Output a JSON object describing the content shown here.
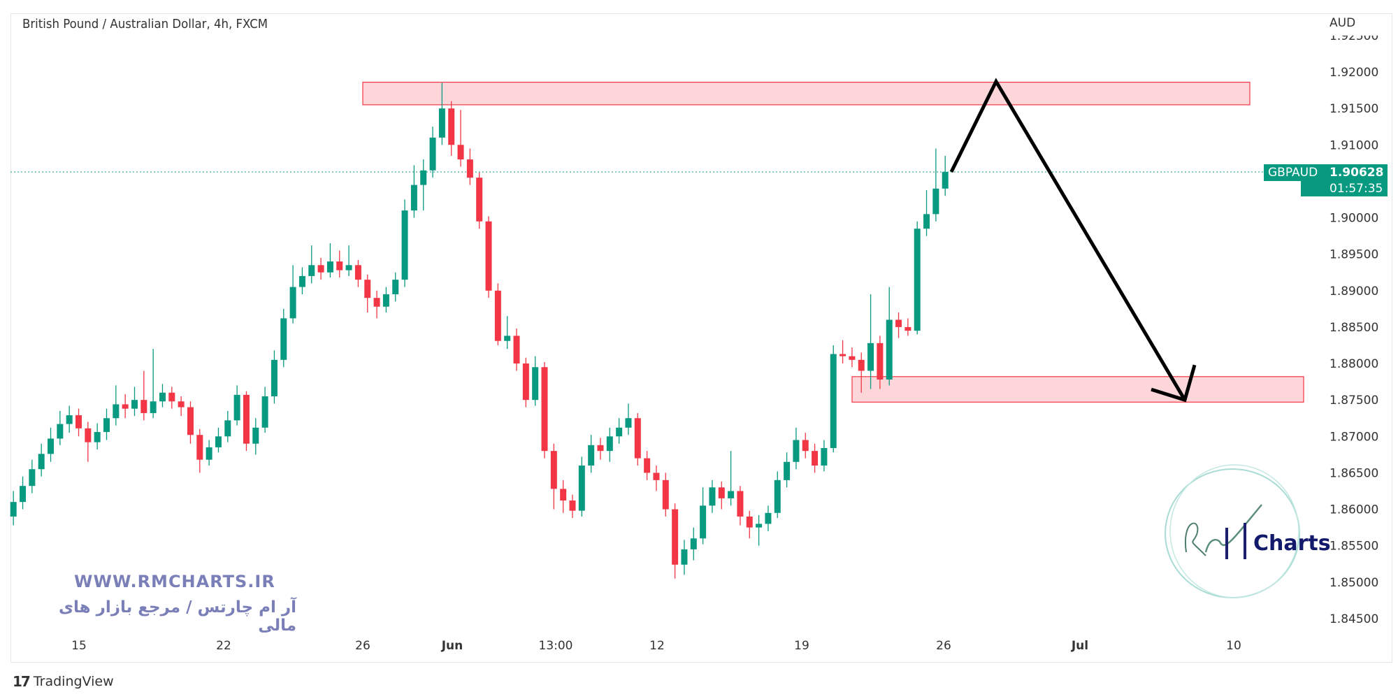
{
  "header": {
    "title": "British Pound / Australian Dollar, 4h, FXCM",
    "currency": "AUD"
  },
  "price_label": {
    "symbol": "GBPAUD",
    "price": "1.90628",
    "countdown": "01:57:35"
  },
  "watermark": {
    "url": "WWW.RMCHARTS.IR",
    "tagline": "آر ام چارتس / مرجع بازار های مالی",
    "logo_text": "RMCharts"
  },
  "footer": {
    "brand": "TradingView"
  },
  "colors": {
    "up": "#089981",
    "down": "#f23645",
    "zone_fill": "#fdd6da",
    "zone_border": "#f23645",
    "arrow": "#000000",
    "price_line": "#089981"
  },
  "chart_data": {
    "type": "candlestick",
    "title": "British Pound / Australian Dollar, 4h, FXCM",
    "ylabel": "AUD",
    "ylim": [
      1.8425,
      1.9235
    ],
    "y_ticks": [
      "1.92500",
      "1.92000",
      "1.91500",
      "1.91000",
      "1.90000",
      "1.89500",
      "1.89000",
      "1.88500",
      "1.88000",
      "1.87500",
      "1.87000",
      "1.86500",
      "1.86000",
      "1.85500",
      "1.85000",
      "1.84500"
    ],
    "x_ticks": [
      "15",
      "22",
      "26",
      "Jun",
      "13:00",
      "12",
      "19",
      "26",
      "Jul",
      "10"
    ],
    "last_price": 1.90628,
    "zones": [
      {
        "type": "resistance",
        "top": 1.9186,
        "bottom": 1.9155
      },
      {
        "type": "support",
        "top": 1.8782,
        "bottom": 1.8747
      }
    ],
    "projection_path": [
      1.9063,
      1.9187,
      1.875
    ],
    "candles": [
      [
        1.859,
        1.8625,
        1.8578,
        1.861
      ],
      [
        1.861,
        1.8645,
        1.86,
        1.8632
      ],
      [
        1.8632,
        1.8668,
        1.8622,
        1.8655
      ],
      [
        1.8655,
        1.869,
        1.8645,
        1.8676
      ],
      [
        1.8676,
        1.8712,
        1.8665,
        1.8697
      ],
      [
        1.8697,
        1.8735,
        1.8688,
        1.8717
      ],
      [
        1.8717,
        1.8742,
        1.8705,
        1.8729
      ],
      [
        1.8729,
        1.8738,
        1.87,
        1.8711
      ],
      [
        1.8711,
        1.872,
        1.8665,
        1.8692
      ],
      [
        1.8692,
        1.8718,
        1.8682,
        1.8706
      ],
      [
        1.8706,
        1.8738,
        1.8695,
        1.8725
      ],
      [
        1.8725,
        1.877,
        1.8715,
        1.8744
      ],
      [
        1.8744,
        1.8758,
        1.8725,
        1.8738
      ],
      [
        1.8738,
        1.8768,
        1.8728,
        1.875
      ],
      [
        1.875,
        1.879,
        1.8722,
        1.8732
      ],
      [
        1.8732,
        1.882,
        1.8725,
        1.8748
      ],
      [
        1.8748,
        1.8772,
        1.874,
        1.876
      ],
      [
        1.876,
        1.8768,
        1.8738,
        1.8748
      ],
      [
        1.8748,
        1.8755,
        1.8728,
        1.874
      ],
      [
        1.874,
        1.8748,
        1.869,
        1.8702
      ],
      [
        1.8702,
        1.871,
        1.865,
        1.8668
      ],
      [
        1.8668,
        1.8695,
        1.866,
        1.8685
      ],
      [
        1.8685,
        1.8712,
        1.8678,
        1.87
      ],
      [
        1.87,
        1.8735,
        1.8692,
        1.8722
      ],
      [
        1.8722,
        1.877,
        1.8715,
        1.8757
      ],
      [
        1.8757,
        1.8762,
        1.868,
        1.869
      ],
      [
        1.869,
        1.8725,
        1.8675,
        1.8712
      ],
      [
        1.8712,
        1.8768,
        1.8705,
        1.8755
      ],
      [
        1.8755,
        1.8818,
        1.8745,
        1.8805
      ],
      [
        1.8805,
        1.8875,
        1.8795,
        1.8862
      ],
      [
        1.8862,
        1.8935,
        1.8855,
        1.8905
      ],
      [
        1.8905,
        1.8932,
        1.8895,
        1.892
      ],
      [
        1.892,
        1.8962,
        1.891,
        1.8935
      ],
      [
        1.8935,
        1.8945,
        1.8915,
        1.8925
      ],
      [
        1.8925,
        1.8965,
        1.8918,
        1.894
      ],
      [
        1.894,
        1.8955,
        1.8918,
        1.8928
      ],
      [
        1.8928,
        1.8962,
        1.892,
        1.8935
      ],
      [
        1.8935,
        1.8942,
        1.8905,
        1.8915
      ],
      [
        1.8915,
        1.8922,
        1.887,
        1.889
      ],
      [
        1.889,
        1.89,
        1.8862,
        1.8878
      ],
      [
        1.8878,
        1.8905,
        1.887,
        1.8895
      ],
      [
        1.8895,
        1.8925,
        1.8885,
        1.8915
      ],
      [
        1.8915,
        1.9025,
        1.8905,
        1.901
      ],
      [
        1.901,
        1.9072,
        1.9,
        1.9045
      ],
      [
        1.9045,
        1.908,
        1.901,
        1.9065
      ],
      [
        1.9065,
        1.9125,
        1.9055,
        1.911
      ],
      [
        1.911,
        1.9185,
        1.91,
        1.915
      ],
      [
        1.915,
        1.916,
        1.9085,
        1.91
      ],
      [
        1.91,
        1.9148,
        1.907,
        1.908
      ],
      [
        1.908,
        1.9095,
        1.9045,
        1.9055
      ],
      [
        1.9055,
        1.9062,
        1.8985,
        1.8995
      ],
      [
        1.8995,
        1.9002,
        1.889,
        1.89
      ],
      [
        1.89,
        1.891,
        1.8825,
        1.8831
      ],
      [
        1.8831,
        1.8865,
        1.882,
        1.8838
      ],
      [
        1.8838,
        1.8848,
        1.879,
        1.88
      ],
      [
        1.88,
        1.8808,
        1.874,
        1.875
      ],
      [
        1.875,
        1.881,
        1.8742,
        1.8795
      ],
      [
        1.8795,
        1.8802,
        1.867,
        1.868
      ],
      [
        1.868,
        1.869,
        1.86,
        1.8628
      ],
      [
        1.8628,
        1.864,
        1.8595,
        1.8612
      ],
      [
        1.8612,
        1.862,
        1.8588,
        1.8598
      ],
      [
        1.8598,
        1.8672,
        1.859,
        1.866
      ],
      [
        1.866,
        1.8702,
        1.865,
        1.8688
      ],
      [
        1.8688,
        1.8698,
        1.8668,
        1.868
      ],
      [
        1.868,
        1.8712,
        1.8665,
        1.87
      ],
      [
        1.87,
        1.8725,
        1.869,
        1.8712
      ],
      [
        1.8712,
        1.8745,
        1.8702,
        1.8725
      ],
      [
        1.8725,
        1.8732,
        1.866,
        1.867
      ],
      [
        1.867,
        1.868,
        1.864,
        1.865
      ],
      [
        1.865,
        1.866,
        1.8625,
        1.864
      ],
      [
        1.864,
        1.865,
        1.859,
        1.86
      ],
      [
        1.86,
        1.8608,
        1.8505,
        1.8524
      ],
      [
        1.8524,
        1.8558,
        1.851,
        1.8545
      ],
      [
        1.8545,
        1.8575,
        1.853,
        1.856
      ],
      [
        1.856,
        1.863,
        1.8552,
        1.8605
      ],
      [
        1.8605,
        1.864,
        1.8595,
        1.863
      ],
      [
        1.863,
        1.8638,
        1.86,
        1.8615
      ],
      [
        1.8615,
        1.868,
        1.8605,
        1.8625
      ],
      [
        1.8625,
        1.8632,
        1.8578,
        1.859
      ],
      [
        1.859,
        1.8598,
        1.856,
        1.8575
      ],
      [
        1.8575,
        1.8592,
        1.855,
        1.858
      ],
      [
        1.858,
        1.8605,
        1.857,
        1.8595
      ],
      [
        1.8595,
        1.8652,
        1.8588,
        1.864
      ],
      [
        1.864,
        1.8678,
        1.863,
        1.8665
      ],
      [
        1.8665,
        1.8712,
        1.8655,
        1.8695
      ],
      [
        1.8695,
        1.8705,
        1.867,
        1.868
      ],
      [
        1.868,
        1.869,
        1.865,
        1.866
      ],
      [
        1.866,
        1.8695,
        1.8652,
        1.8684
      ],
      [
        1.8684,
        1.8825,
        1.8678,
        1.8813
      ],
      [
        1.8813,
        1.8832,
        1.88,
        1.881
      ],
      [
        1.881,
        1.8822,
        1.8795,
        1.8805
      ],
      [
        1.8805,
        1.8815,
        1.876,
        1.879
      ],
      [
        1.879,
        1.8895,
        1.8765,
        1.8828
      ],
      [
        1.8828,
        1.8838,
        1.8765,
        1.8778
      ],
      [
        1.8778,
        1.8905,
        1.877,
        1.886
      ],
      [
        1.886,
        1.887,
        1.8835,
        1.885
      ],
      [
        1.885,
        1.8862,
        1.8838,
        1.8845
      ],
      [
        1.8845,
        1.8995,
        1.884,
        1.8985
      ],
      [
        1.8985,
        1.9038,
        1.8975,
        1.9005
      ],
      [
        1.9005,
        1.9095,
        1.8995,
        1.904
      ],
      [
        1.904,
        1.9085,
        1.903,
        1.9063
      ]
    ]
  }
}
